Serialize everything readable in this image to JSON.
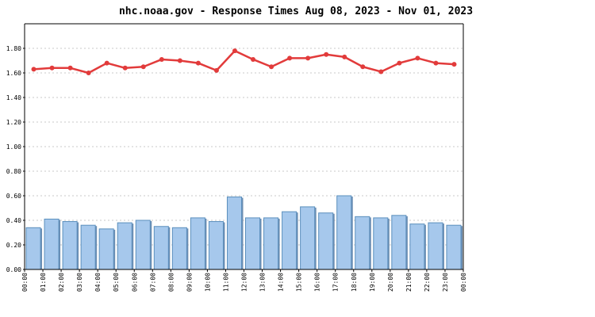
{
  "chart_data": {
    "type": "bar",
    "title": "nhc.noaa.gov - Response Times Aug 08, 2023 - Nov 01, 2023",
    "xlabel": "",
    "ylabel": "",
    "categories": [
      "00:00",
      "01:00",
      "02:00",
      "03:00",
      "04:00",
      "05:00",
      "06:00",
      "07:00",
      "08:00",
      "09:00",
      "10:00",
      "11:00",
      "12:00",
      "13:00",
      "14:00",
      "15:00",
      "16:00",
      "17:00",
      "18:00",
      "19:00",
      "20:00",
      "21:00",
      "22:00",
      "23:00"
    ],
    "x_tick_labels": [
      "00:00",
      "01:00",
      "02:00",
      "03:00",
      "04:00",
      "05:00",
      "06:00",
      "07:00",
      "08:00",
      "09:00",
      "10:00",
      "11:00",
      "12:00",
      "13:00",
      "14:00",
      "15:00",
      "16:00",
      "17:00",
      "18:00",
      "19:00",
      "20:00",
      "21:00",
      "22:00",
      "23:00",
      "00:00"
    ],
    "y_tick_labels": [
      "0.00",
      "0.20",
      "0.40",
      "0.60",
      "0.80",
      "1.00",
      "1.20",
      "1.40",
      "1.60",
      "1.80"
    ],
    "ylim": [
      0,
      2.0
    ],
    "y_ticks": [
      0,
      0.2,
      0.4,
      0.6,
      0.8,
      1.0,
      1.2,
      1.4,
      1.6,
      1.8
    ],
    "grid": true,
    "series": [
      {
        "type": "bar",
        "values": [
          0.34,
          0.41,
          0.39,
          0.36,
          0.33,
          0.38,
          0.4,
          0.35,
          0.34,
          0.42,
          0.39,
          0.59,
          0.42,
          0.42,
          0.47,
          0.51,
          0.46,
          0.6,
          0.43,
          0.42,
          0.44,
          0.37,
          0.38,
          0.36
        ],
        "color": "#a6c8ec",
        "edge_color": "#5b8fbd"
      },
      {
        "type": "line",
        "values": [
          1.63,
          1.64,
          1.64,
          1.6,
          1.68,
          1.64,
          1.65,
          1.71,
          1.7,
          1.68,
          1.62,
          1.78,
          1.71,
          1.65,
          1.72,
          1.72,
          1.75,
          1.73,
          1.65,
          1.61,
          1.68,
          1.72,
          1.68,
          1.67
        ],
        "color": "#e23b3b"
      }
    ]
  }
}
